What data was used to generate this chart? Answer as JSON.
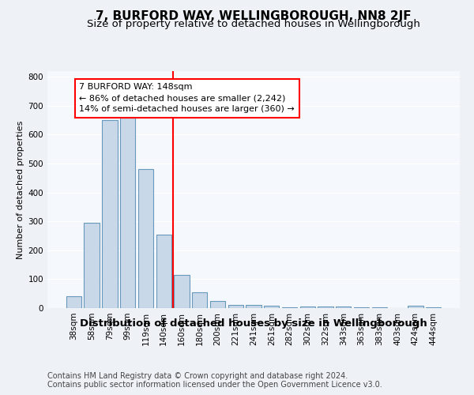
{
  "title": "7, BURFORD WAY, WELLINGBOROUGH, NN8 2JF",
  "subtitle": "Size of property relative to detached houses in Wellingborough",
  "xlabel": "Distribution of detached houses by size in Wellingborough",
  "ylabel": "Number of detached properties",
  "footnote1": "Contains HM Land Registry data © Crown copyright and database right 2024.",
  "footnote2": "Contains public sector information licensed under the Open Government Licence v3.0.",
  "categories": [
    "38sqm",
    "58sqm",
    "79sqm",
    "99sqm",
    "119sqm",
    "140sqm",
    "160sqm",
    "180sqm",
    "200sqm",
    "221sqm",
    "241sqm",
    "261sqm",
    "282sqm",
    "302sqm",
    "322sqm",
    "343sqm",
    "363sqm",
    "383sqm",
    "403sqm",
    "424sqm",
    "444sqm"
  ],
  "values": [
    40,
    295,
    650,
    660,
    480,
    255,
    115,
    55,
    25,
    12,
    10,
    8,
    4,
    5,
    5,
    5,
    4,
    4,
    1,
    8,
    3
  ],
  "bar_color": "#c8d8e8",
  "bar_edge_color": "#6699bb",
  "vline_color": "red",
  "annotation_line1": "7 BURFORD WAY: 148sqm",
  "annotation_line2": "← 86% of detached houses are smaller (2,242)",
  "annotation_line3": "14% of semi-detached houses are larger (360) →",
  "annotation_box_color": "white",
  "annotation_box_edge_color": "red",
  "ylim": [
    0,
    820
  ],
  "yticks": [
    0,
    100,
    200,
    300,
    400,
    500,
    600,
    700,
    800
  ],
  "bg_color": "#eef2f7",
  "plot_bg_color": "#f5f8fc",
  "grid_color": "#ffffff",
  "title_fontsize": 11,
  "subtitle_fontsize": 9.5,
  "xlabel_fontsize": 9.5,
  "ylabel_fontsize": 8,
  "footnote_fontsize": 7,
  "tick_fontsize": 7.5,
  "annotation_fontsize": 8
}
